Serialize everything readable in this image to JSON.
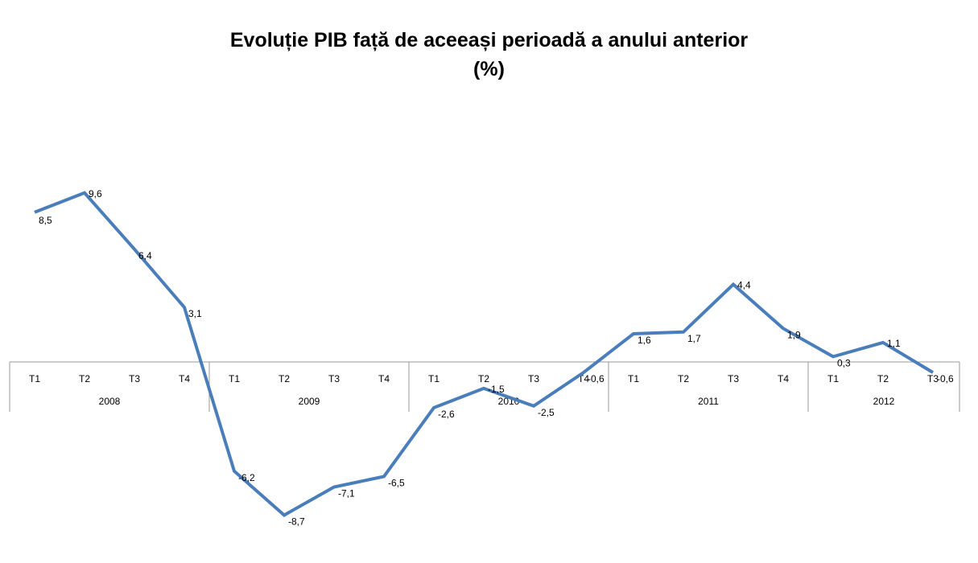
{
  "chart_data": {
    "type": "line",
    "title": "Evoluție PIB față de aceeași perioadă a anului anterior",
    "subtitle": "(%)",
    "years": [
      {
        "label": "2008",
        "quarters": [
          "T1",
          "T2",
          "T3",
          "T4"
        ]
      },
      {
        "label": "2009",
        "quarters": [
          "T1",
          "T2",
          "T3",
          "T4"
        ]
      },
      {
        "label": "2010",
        "quarters": [
          "T1",
          "T2",
          "T3",
          "T4"
        ]
      },
      {
        "label": "2011",
        "quarters": [
          "T1",
          "T2",
          "T3",
          "T4"
        ]
      },
      {
        "label": "2012",
        "quarters": [
          "T1",
          "T2",
          "T3"
        ]
      }
    ],
    "values": [
      8.5,
      9.6,
      6.4,
      3.1,
      -6.2,
      -8.7,
      -7.1,
      -6.5,
      -2.6,
      -1.5,
      -2.5,
      -0.6,
      1.6,
      1.7,
      4.4,
      1.9,
      0.3,
      1.1,
      -0.6
    ],
    "data_labels": [
      "8,5",
      "9,6",
      "6,4",
      "3,1",
      "-6,2",
      "-8,7",
      "-7,1",
      "-6,5",
      "-2,6",
      "-1,5",
      "-2,5",
      "-0,6",
      "1,6",
      "1,7",
      "4,4",
      "1,9",
      "0,3",
      "1,1",
      "-0,6"
    ],
    "line_color": "#4a7ebb",
    "axis_color": "#999999",
    "grid": false,
    "legend": "none"
  }
}
